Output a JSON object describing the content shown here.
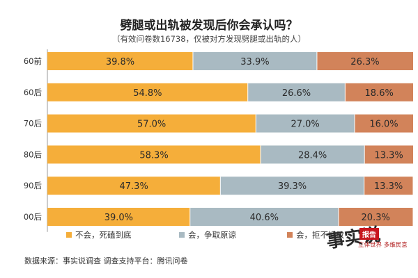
{
  "title": "劈腿或出轨被发现后你会承认吗？",
  "subtitle": "（有效问卷数16738，仅被对方发现劈腿或出轨的人）",
  "colors": {
    "series1": "#f5ae3a",
    "series2": "#a9bac2",
    "series3": "#d2835a"
  },
  "chart_data": {
    "type": "bar",
    "orientation": "horizontal",
    "stacked": true,
    "percent": true,
    "xlim": [
      0,
      100
    ],
    "title": "劈腿或出轨被发现后你会承认吗？",
    "subtitle": "（有效问卷数16738，仅被对方发现劈腿或出轨的人）",
    "categories": [
      "60前",
      "60后",
      "70后",
      "80后",
      "90后",
      "00后"
    ],
    "series": [
      {
        "name": "不会，死磕到底",
        "values": [
          39.8,
          54.8,
          57.0,
          58.3,
          47.3,
          39.0
        ],
        "labels": [
          "39.8%",
          "54.8%",
          "57.0%",
          "58.3%",
          "47.3%",
          "39.0%"
        ]
      },
      {
        "name": "会，争取原谅",
        "values": [
          33.9,
          26.6,
          27.0,
          28.4,
          39.3,
          40.6
        ],
        "labels": [
          "33.9%",
          "26.6%",
          "27.0%",
          "28.4%",
          "39.3%",
          "40.6%"
        ]
      },
      {
        "name": "会，拒不悔改",
        "values": [
          26.3,
          18.6,
          16.0,
          13.3,
          13.3,
          20.3
        ],
        "labels": [
          "26.3%",
          "18.6%",
          "16.0%",
          "13.3%",
          "13.3%",
          "20.3%"
        ]
      }
    ],
    "legend": "bottom",
    "grid": false
  },
  "source": "数据来源：事实说调查   调查支持平台：腾讯问卷",
  "logo": {
    "mark": "事实说",
    "tag": "报告",
    "slogan": "立体世界 多维民意"
  }
}
